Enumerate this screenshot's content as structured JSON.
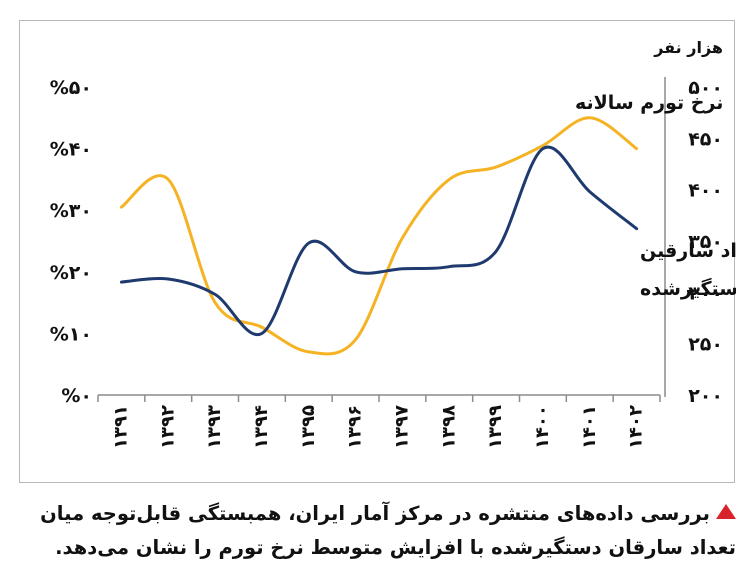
{
  "chart_data": {
    "type": "line",
    "x_categories": [
      "۱۳۹۱",
      "۱۳۹۲",
      "۱۳۹۳",
      "۱۳۹۴",
      "۱۳۹۵",
      "۱۳۹۶",
      "۱۳۹۷",
      "۱۳۹۸",
      "۱۳۹۹",
      "۱۴۰۰",
      "۱۴۰۱",
      "۱۴۰۲"
    ],
    "left_axis": {
      "ylim": [
        0,
        50
      ],
      "ticks": [
        0,
        10,
        20,
        30,
        40,
        50
      ],
      "tick_labels": [
        "%۰",
        "%۱۰",
        "%۲۰",
        "%۳۰",
        "%۴۰",
        "%۵۰"
      ]
    },
    "right_axis": {
      "ylim": [
        200,
        500
      ],
      "ticks": [
        200,
        250,
        300,
        350,
        400,
        450,
        500
      ],
      "tick_labels": [
        "۲۰۰",
        "۲۵۰",
        "۳۰۰",
        "۳۵۰",
        "۴۰۰",
        "۴۵۰",
        "۵۰۰"
      ],
      "unit_label": "هزار نفر"
    },
    "series": [
      {
        "name": "نرخ تورم سالانه",
        "axis": "left",
        "color": "#f5b324",
        "values": [
          30.5,
          35,
          15,
          11,
          7,
          9,
          25.5,
          35,
          37,
          40.5,
          45,
          40
        ]
      },
      {
        "name": "تعداد سارقین دستگیرشده",
        "axis": "right",
        "color": "#1f3a6e",
        "values": [
          310,
          313,
          298,
          260,
          348,
          320,
          323,
          325,
          340,
          440,
          398,
          362
        ],
        "label_lines": [
          "تعداد سارقین",
          "دستگیرشده"
        ]
      }
    ],
    "grid": false
  },
  "caption": {
    "line1": "بررسی داده‌های منتشره در مرکز آمار ایران، همبستگی قابل‌توجه میان",
    "line2": "تعداد سارقان دستگیرشده با افزایش متوسط نرخ تورم را نشان می‌دهد."
  },
  "colors": {
    "accent": "#d8232a"
  }
}
